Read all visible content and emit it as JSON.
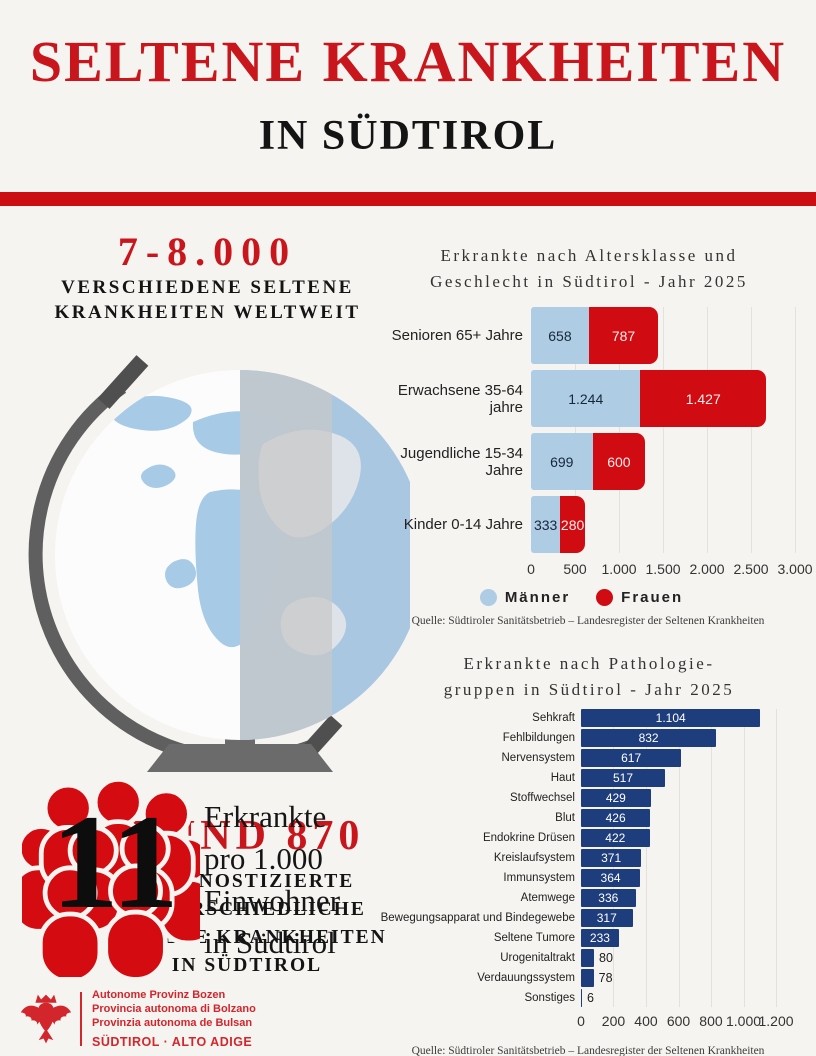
{
  "header": {
    "title": "SELTENE KRANKHEITEN",
    "subtitle": "IN SÜDTIROL"
  },
  "left": {
    "stat": {
      "number": "7-8.000",
      "line1": "VERSCHIEDENE SELTENE",
      "line2": "KRANKHEITEN WELTWEIT"
    },
    "globe": {
      "number": "RUND 870",
      "lines": [
        "DIAGNOSTIZIERTE",
        "UNTERSCHIEDLICHE",
        "SELTENE KRANKHEITEN",
        "IN SÜDTIROL"
      ]
    },
    "rate": {
      "number": "11",
      "lines": [
        "Erkrankte",
        "pro 1.000",
        "Einwohner",
        "in Südtirol"
      ]
    },
    "logo": {
      "line1": "Autonome Provinz Bozen",
      "line2": "Provincia autonoma di Bolzano",
      "line3": "Provinzia autonoma de Bulsan",
      "wordmark": "SÜDTIROL · ALTO ADIGE"
    }
  },
  "colors": {
    "accent_red": "#cc0d11",
    "title_red": "#c9161c",
    "men_blue": "#aecde4",
    "women_red": "#d00b11",
    "pathology_blue": "#1e3d7c",
    "logo_red": "#d2262c",
    "background": "#f6f4f1"
  },
  "chart_data": [
    {
      "type": "bar",
      "orientation": "horizontal-stacked",
      "title_lines": [
        "Erkrankte nach Altersklasse und",
        "Geschlecht in Südtirol - Jahr 2025"
      ],
      "categories": [
        "Senioren 65+ Jahre",
        "Erwachsene 35-64 jahre",
        "Jugendliche 15-34 Jahre",
        "Kinder 0-14 Jahre"
      ],
      "series": [
        {
          "name": "Männer",
          "color": "#aecde4",
          "values": [
            658,
            1244,
            699,
            333
          ]
        },
        {
          "name": "Frauen",
          "color": "#d00b11",
          "values": [
            787,
            1427,
            600,
            280
          ]
        }
      ],
      "xlim": [
        0,
        3000
      ],
      "xticks": [
        0,
        500,
        1000,
        1500,
        2000,
        2500,
        3000
      ],
      "grid": true,
      "legend_position": "bottom",
      "source": "Quelle: Südtiroler Sanitätsbetrieb – Landesregister der Seltenen Krankheiten"
    },
    {
      "type": "bar",
      "orientation": "horizontal",
      "title_lines": [
        "Erkrankte nach Pathologie-",
        "gruppen in Südtirol - Jahr 2025"
      ],
      "categories": [
        "Sehkraft",
        "Fehlbildungen",
        "Nervensystem",
        "Haut",
        "Stoffwechsel",
        "Blut",
        "Endokrine Drüsen",
        "Kreislaufsystem",
        "Immunsystem",
        "Atemwege",
        "Bewegungsapparat und Bindegewebe",
        "Seltene Tumore",
        "Urogenitaltrakt",
        "Verdauungssystem",
        "Sonstiges"
      ],
      "values": [
        1104,
        832,
        617,
        517,
        429,
        426,
        422,
        371,
        364,
        336,
        317,
        233,
        80,
        78,
        6
      ],
      "bar_color": "#1e3d7c",
      "xlim": [
        0,
        1200
      ],
      "xticks": [
        0,
        200,
        400,
        600,
        800,
        1000,
        1200
      ],
      "grid": true,
      "source": "Quelle: Südtiroler Sanitätsbetrieb – Landesregister der Seltenen Krankheiten"
    }
  ]
}
